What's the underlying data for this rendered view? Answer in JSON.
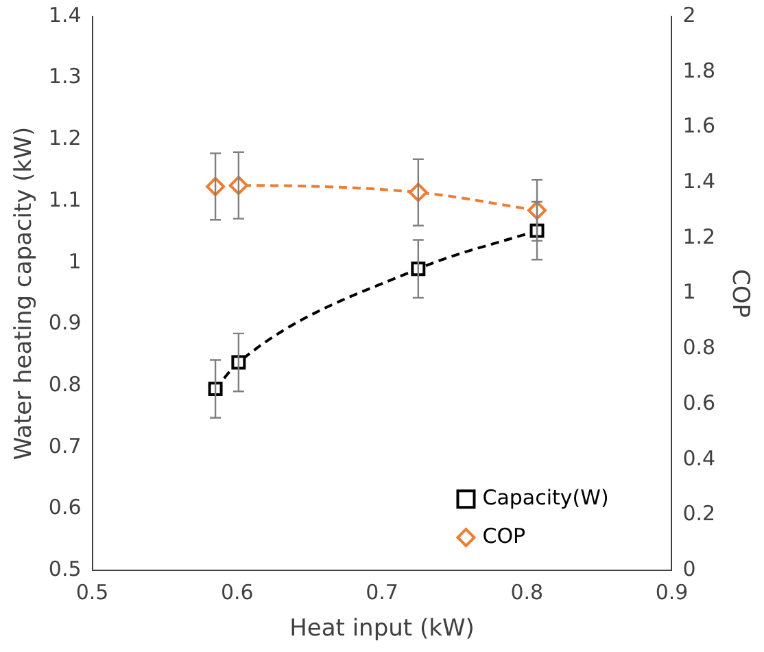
{
  "chart_data": {
    "type": "line",
    "xlabel": "Heat input (kW)",
    "ylabel": "Water heating capacity (kW)",
    "y2label": "COP",
    "xlim": [
      0.5,
      0.9
    ],
    "xticks": [
      0.5,
      0.6,
      0.7,
      0.8,
      0.9
    ],
    "ylim": [
      0.5,
      1.4
    ],
    "yticks": [
      0.5,
      0.6,
      0.7,
      0.8,
      0.9,
      1,
      1.1,
      1.2,
      1.3,
      1.4
    ],
    "y2lim": [
      0,
      2
    ],
    "y2ticks": [
      0,
      0.2,
      0.4,
      0.6,
      0.8,
      1,
      1.2,
      1.4,
      1.6,
      1.8,
      2
    ],
    "grid": false,
    "legend": "bottom right",
    "line_style": "dashed",
    "series": [
      {
        "name": "Capacity(W)",
        "color": "#000000",
        "marker": "square",
        "x": [
          0.585,
          0.601,
          0.725,
          0.807
        ],
        "values": [
          0.795,
          0.838,
          0.99,
          1.052
        ],
        "errors": [
          0.047,
          0.047,
          0.047,
          0.047
        ]
      },
      {
        "name": "COP",
        "color": "#ed7d31",
        "marker": "diamond",
        "axis": "y2",
        "x": [
          0.585,
          0.601,
          0.725,
          0.807
        ],
        "values": [
          1.386,
          1.39,
          1.365,
          1.3
        ],
        "errors": [
          0.12,
          0.12,
          0.12,
          0.11
        ]
      }
    ]
  }
}
